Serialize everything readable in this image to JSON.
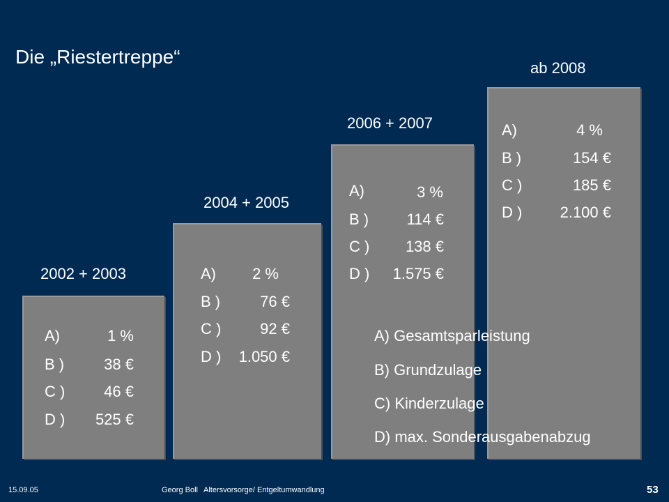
{
  "title": "Die „Riestertreppe“",
  "steps": [
    {
      "period": "2002 + 2003",
      "rows": [
        {
          "key": "A)",
          "value": "1 %"
        },
        {
          "key": "B )",
          "value": "38 €"
        },
        {
          "key": "C )",
          "value": "46 €"
        },
        {
          "key": "D )",
          "value": "525 €"
        }
      ]
    },
    {
      "period": "2004 + 2005",
      "rows": [
        {
          "key": "A)",
          "value": "2 %"
        },
        {
          "key": "B )",
          "value": "76 €"
        },
        {
          "key": "C )",
          "value": "92 €"
        },
        {
          "key": "D )",
          "value": "1.050 €"
        }
      ]
    },
    {
      "period": "2006 + 2007",
      "rows": [
        {
          "key": "A)",
          "value": "3 %"
        },
        {
          "key": "B )",
          "value": "114 €"
        },
        {
          "key": "C )",
          "value": "138 €"
        },
        {
          "key": "D )",
          "value": "1.575 €"
        }
      ]
    },
    {
      "period": "ab 2008",
      "rows": [
        {
          "key": "A)",
          "value": "4 %"
        },
        {
          "key": "B )",
          "value": "154 €"
        },
        {
          "key": "C )",
          "value": "185 €"
        },
        {
          "key": "D )",
          "value": "2.100 €"
        }
      ]
    }
  ],
  "legend": [
    "A) Gesamtsparleistung",
    "B) Grundzulage",
    "C) Kinderzulage",
    "D) max. Sonderausgabenabzug"
  ],
  "footer": {
    "date": "15.09.05",
    "author": "Georg Boll",
    "topic": "Altersvorsorge/ Entgeltumwandlung",
    "page": "53"
  },
  "colors": {
    "background": "#002a52",
    "step_fill": "#7f7f7f",
    "text": "#ffffff"
  }
}
